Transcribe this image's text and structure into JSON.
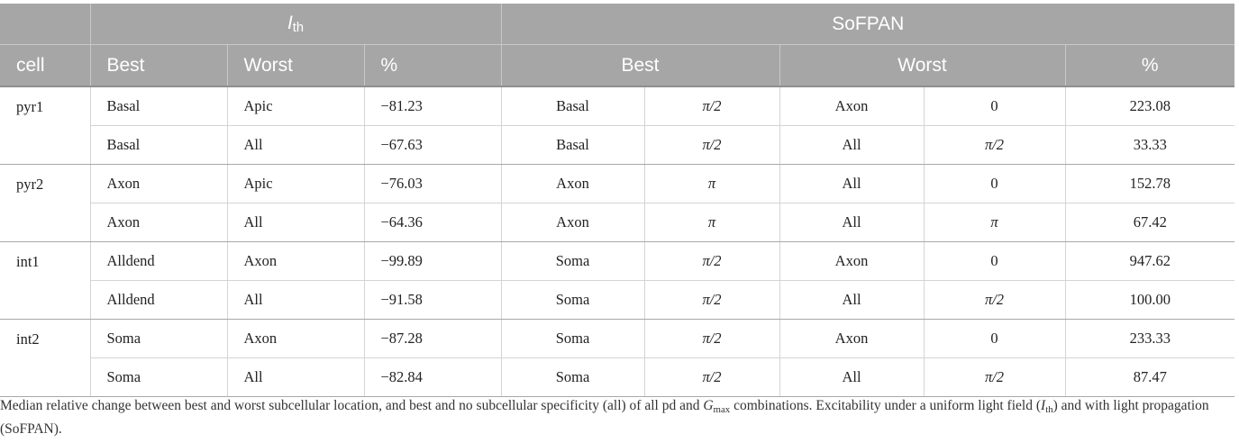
{
  "header": {
    "ith_symbol": "I",
    "ith_sub": "th",
    "sofpan_label": "SoFPAN",
    "cell_label": "cell",
    "best_label": "Best",
    "worst_label": "Worst",
    "percent_label": "%"
  },
  "rows": [
    {
      "cell": "pyr1",
      "ith_best": "Basal",
      "ith_worst": "Apic",
      "ith_pct": "−81.23",
      "sof_best": "Basal",
      "sof_best_phase": "π/2",
      "sof_worst": "Axon",
      "sof_worst_phase": "0",
      "sof_pct": "223.08"
    },
    {
      "cell": "",
      "ith_best": "Basal",
      "ith_worst": "All",
      "ith_pct": "−67.63",
      "sof_best": "Basal",
      "sof_best_phase": "π/2",
      "sof_worst": "All",
      "sof_worst_phase": "π/2",
      "sof_pct": "33.33"
    },
    {
      "cell": "pyr2",
      "ith_best": "Axon",
      "ith_worst": "Apic",
      "ith_pct": "−76.03",
      "sof_best": "Axon",
      "sof_best_phase": "π",
      "sof_worst": "All",
      "sof_worst_phase": "0",
      "sof_pct": "152.78"
    },
    {
      "cell": "",
      "ith_best": "Axon",
      "ith_worst": "All",
      "ith_pct": "−64.36",
      "sof_best": "Axon",
      "sof_best_phase": "π",
      "sof_worst": "All",
      "sof_worst_phase": "π",
      "sof_pct": "67.42"
    },
    {
      "cell": "int1",
      "ith_best": "Alldend",
      "ith_worst": "Axon",
      "ith_pct": "−99.89",
      "sof_best": "Soma",
      "sof_best_phase": "π/2",
      "sof_worst": "Axon",
      "sof_worst_phase": "0",
      "sof_pct": "947.62"
    },
    {
      "cell": "",
      "ith_best": "Alldend",
      "ith_worst": "All",
      "ith_pct": "−91.58",
      "sof_best": "Soma",
      "sof_best_phase": "π/2",
      "sof_worst": "All",
      "sof_worst_phase": "π/2",
      "sof_pct": "100.00"
    },
    {
      "cell": "int2",
      "ith_best": "Soma",
      "ith_worst": "Axon",
      "ith_pct": "−87.28",
      "sof_best": "Soma",
      "sof_best_phase": "π/2",
      "sof_worst": "Axon",
      "sof_worst_phase": "0",
      "sof_pct": "233.33"
    },
    {
      "cell": "",
      "ith_best": "Soma",
      "ith_worst": "All",
      "ith_pct": "−82.84",
      "sof_best": "Soma",
      "sof_best_phase": "π/2",
      "sof_worst": "All",
      "sof_worst_phase": "π/2",
      "sof_pct": "87.47"
    }
  ],
  "caption": {
    "part1": "Median relative change between best and worst subcellular location, and best and no subcellular specificity (all) of all pd and ",
    "gmax_symbol": "G",
    "gmax_sub": "max",
    "part2": " combinations. Excitability under a uniform light field (",
    "ith_symbol": "I",
    "ith_sub": "th",
    "part3": ") and with light propagation (SoFPAN)."
  }
}
